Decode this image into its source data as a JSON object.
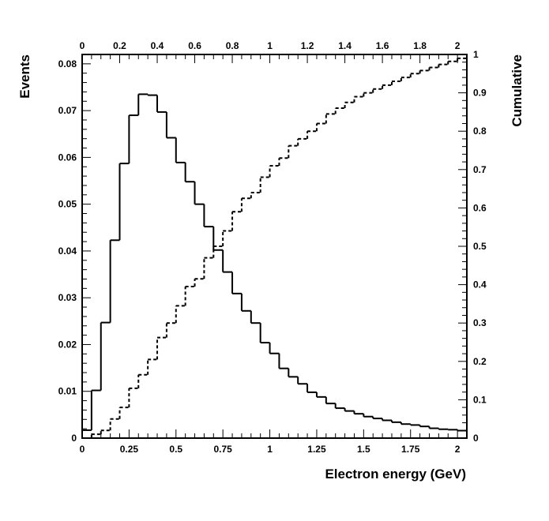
{
  "chart_data": {
    "type": "histogram",
    "xlabel": "Electron energy (GeV)",
    "ylabel_left": "Events",
    "ylabel_right": "Cumulative",
    "xlim": [
      0,
      2.05
    ],
    "ylim_left": [
      0,
      0.082
    ],
    "ylim_right": [
      0,
      1.0
    ],
    "x_ticks_bottom": [
      "0",
      "0.25",
      "0.5",
      "0.75",
      "1",
      "1.25",
      "1.5",
      "1.75",
      "2"
    ],
    "x_ticks_top": [
      "0",
      "0.2",
      "0.4",
      "0.6",
      "0.8",
      "1",
      "1.2",
      "1.4",
      "1.6",
      "1.8",
      "2"
    ],
    "y_ticks_left": [
      "0",
      "0.01",
      "0.02",
      "0.03",
      "0.04",
      "0.05",
      "0.06",
      "0.07",
      "0.08"
    ],
    "y_ticks_right": [
      "0",
      "0.1",
      "0.2",
      "0.3",
      "0.4",
      "0.5",
      "0.6",
      "0.7",
      "0.8",
      "0.9",
      "1"
    ],
    "bin_width": 0.05,
    "series": [
      {
        "name": "Events",
        "axis": "left",
        "style": "solid",
        "values": [
          0.0017,
          0.0102,
          0.0247,
          0.0423,
          0.0587,
          0.069,
          0.0735,
          0.0733,
          0.0697,
          0.0642,
          0.0589,
          0.0548,
          0.05,
          0.0452,
          0.0402,
          0.0355,
          0.0309,
          0.0272,
          0.0246,
          0.0204,
          0.0181,
          0.0149,
          0.0131,
          0.0116,
          0.0098,
          0.0088,
          0.0074,
          0.0064,
          0.0058,
          0.0052,
          0.0046,
          0.0042,
          0.0038,
          0.0034,
          0.003,
          0.0028,
          0.0025,
          0.0021,
          0.0019,
          0.0018,
          0.0016,
          0.0014
        ]
      },
      {
        "name": "Cumulative",
        "axis": "right",
        "style": "dashed",
        "values": [
          0.0,
          0.01,
          0.02,
          0.05,
          0.08,
          0.13,
          0.165,
          0.205,
          0.262,
          0.3,
          0.345,
          0.395,
          0.415,
          0.47,
          0.5,
          0.54,
          0.59,
          0.625,
          0.64,
          0.68,
          0.71,
          0.73,
          0.762,
          0.78,
          0.8,
          0.82,
          0.845,
          0.86,
          0.875,
          0.89,
          0.9,
          0.91,
          0.92,
          0.93,
          0.94,
          0.95,
          0.958,
          0.966,
          0.974,
          0.982,
          0.99,
          0.996
        ]
      }
    ]
  }
}
